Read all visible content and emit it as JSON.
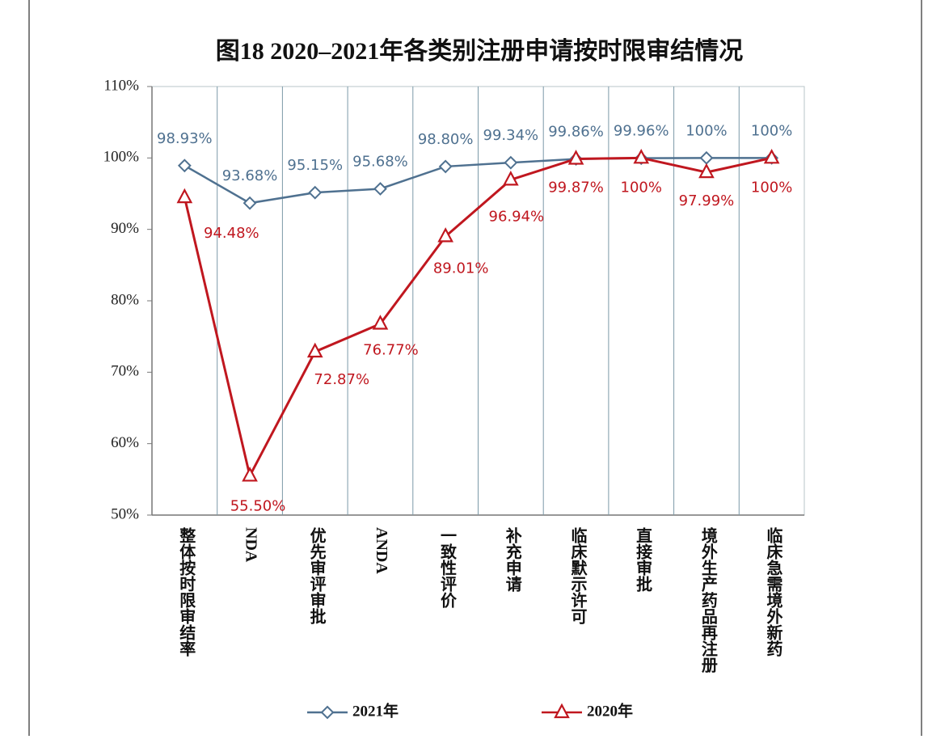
{
  "chart_data": {
    "type": "line",
    "title": "图18  2020–2021年各类别注册申请按时限审结情况",
    "categories": [
      "整体按时限审结率",
      "NDA",
      "优先审评审批",
      "ANDA",
      "一致性评价",
      "补充申请",
      "临床默示许可",
      "直接审批",
      "境外生产药品再注册",
      "临床急需境外新药"
    ],
    "series": [
      {
        "name": "2021年",
        "color": "#4f7190",
        "marker": "diamond",
        "values": [
          98.93,
          93.68,
          95.15,
          95.68,
          98.8,
          99.34,
          99.86,
          99.96,
          100,
          100
        ],
        "value_labels": [
          "98.93%",
          "93.68%",
          "95.15%",
          "95.68%",
          "98.80%",
          "99.34%",
          "99.86%",
          "99.96%",
          "100%",
          "100%"
        ]
      },
      {
        "name": "2020年",
        "color": "#c0171f",
        "marker": "triangle",
        "values": [
          94.48,
          55.5,
          72.87,
          76.77,
          89.01,
          96.94,
          99.87,
          100,
          97.99,
          100
        ],
        "value_labels": [
          "94.48%",
          "55.50%",
          "72.87%",
          "76.77%",
          "89.01%",
          "96.94%",
          "99.87%",
          "100%",
          "97.99%",
          "100%"
        ]
      }
    ],
    "ylim": [
      50,
      110
    ],
    "yticks": [
      {
        "value": 50,
        "label": "50%"
      },
      {
        "value": 60,
        "label": "60%"
      },
      {
        "value": 70,
        "label": "70%"
      },
      {
        "value": 80,
        "label": "80%"
      },
      {
        "value": 90,
        "label": "90%"
      },
      {
        "value": 100,
        "label": "100%"
      },
      {
        "value": 110,
        "label": "110%"
      }
    ],
    "grid": false,
    "category_dividers": true,
    "legend": "bottom"
  }
}
